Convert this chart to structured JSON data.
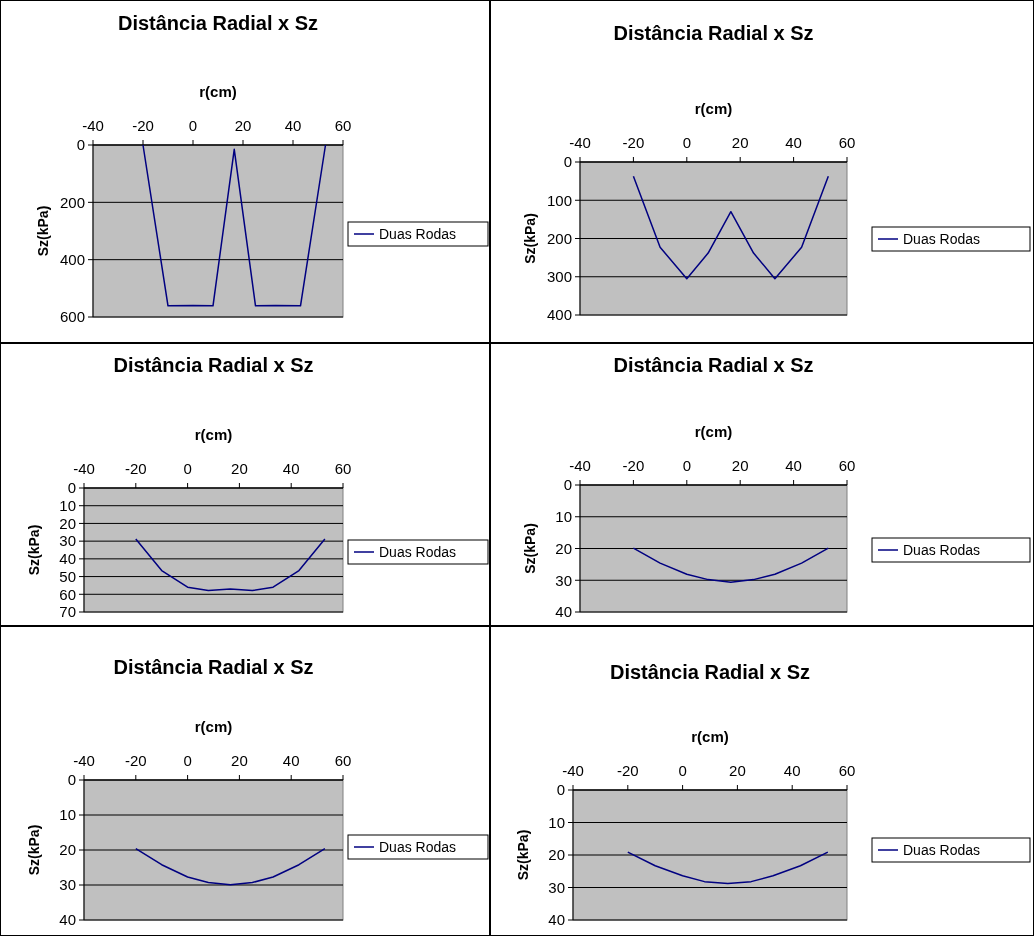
{
  "chart_data": [
    {
      "type": "line",
      "title": "Distância Radial x Sz",
      "xlabel": "r(cm)",
      "ylabel": "Sz(kPa)",
      "xlim": [
        -40,
        60
      ],
      "xticks": [
        -40,
        -20,
        0,
        20,
        40,
        60
      ],
      "ylim": [
        600,
        0
      ],
      "yticks": [
        0,
        200,
        400,
        600
      ],
      "grid": "y",
      "legend": "right",
      "x": [
        -20,
        -10,
        0,
        8,
        16.5,
        25,
        33,
        43,
        53
      ],
      "series": [
        {
          "name": "Duas Rodas",
          "color": "#000080",
          "values": [
            0,
            561,
            560,
            561,
            15,
            561,
            560,
            561,
            0
          ]
        }
      ]
    },
    {
      "type": "line",
      "title": "Distância Radial x Sz",
      "xlabel": "r(cm)",
      "ylabel": "Sz(kPa)",
      "xlim": [
        -40,
        60
      ],
      "xticks": [
        -40,
        -20,
        0,
        20,
        40,
        60
      ],
      "ylim": [
        400,
        0
      ],
      "yticks": [
        0,
        100,
        200,
        300,
        400
      ],
      "grid": "y",
      "legend": "right",
      "x": [
        -20,
        -10,
        0,
        8,
        16.5,
        25,
        33,
        43,
        53
      ],
      "series": [
        {
          "name": "Duas Rodas",
          "color": "#000080",
          "values": [
            37,
            223,
            305,
            238,
            130,
            238,
            305,
            223,
            37
          ]
        }
      ]
    },
    {
      "type": "line",
      "title": "Distância Radial x Sz",
      "xlabel": "r(cm)",
      "ylabel": "Sz(kPa)",
      "xlim": [
        -40,
        60
      ],
      "xticks": [
        -40,
        -20,
        0,
        20,
        40,
        60
      ],
      "ylim": [
        70,
        0
      ],
      "yticks": [
        0,
        10,
        20,
        30,
        40,
        50,
        60,
        70
      ],
      "grid": "y",
      "legend": "right",
      "x": [
        -20,
        -10,
        0,
        8,
        16.5,
        25,
        33,
        43,
        53
      ],
      "series": [
        {
          "name": "Duas Rodas",
          "color": "#000080",
          "values": [
            28.8,
            46.6,
            56,
            57.9,
            57,
            57.9,
            56,
            46.6,
            28.8
          ]
        }
      ]
    },
    {
      "type": "line",
      "title": "Distância Radial x Sz",
      "xlabel": "r(cm)",
      "ylabel": "Sz(kPa)",
      "xlim": [
        -40,
        60
      ],
      "xticks": [
        -40,
        -20,
        0,
        20,
        40,
        60
      ],
      "ylim": [
        40,
        0
      ],
      "yticks": [
        0,
        10,
        20,
        30,
        40
      ],
      "grid": "y",
      "legend": "right",
      "x": [
        -20,
        -10,
        0,
        8,
        16.5,
        25,
        33,
        43,
        53
      ],
      "series": [
        {
          "name": "Duas Rodas",
          "color": "#000080",
          "values": [
            19.9,
            24.6,
            28.1,
            29.8,
            30.6,
            29.8,
            28.1,
            24.6,
            19.9
          ]
        }
      ]
    },
    {
      "type": "line",
      "title": "Distância Radial x Sz",
      "xlabel": "r(cm)",
      "ylabel": "Sz(kPa)",
      "xlim": [
        -40,
        60
      ],
      "xticks": [
        -40,
        -20,
        0,
        20,
        40,
        60
      ],
      "ylim": [
        40,
        0
      ],
      "yticks": [
        0,
        10,
        20,
        30,
        40
      ],
      "grid": "y",
      "legend": "right",
      "x": [
        -20,
        -10,
        0,
        8,
        16.5,
        25,
        33,
        43,
        53
      ],
      "series": [
        {
          "name": "Duas Rodas",
          "color": "#000080",
          "values": [
            19.6,
            24.2,
            27.7,
            29.3,
            29.9,
            29.3,
            27.7,
            24.2,
            19.6
          ]
        }
      ]
    },
    {
      "type": "line",
      "title": "Distância Radial x Sz",
      "xlabel": "r(cm)",
      "ylabel": "Sz(kPa)",
      "xlim": [
        -40,
        60
      ],
      "xticks": [
        -40,
        -20,
        0,
        20,
        40,
        60
      ],
      "ylim": [
        40,
        0
      ],
      "yticks": [
        0,
        10,
        20,
        30,
        40
      ],
      "grid": "y",
      "legend": "right",
      "x": [
        -20,
        -10,
        0,
        8,
        16.5,
        25,
        33,
        43,
        53
      ],
      "series": [
        {
          "name": "Duas Rodas",
          "color": "#000080",
          "values": [
            19.1,
            23.3,
            26.4,
            28.2,
            28.8,
            28.2,
            26.4,
            23.3,
            19.1
          ]
        }
      ]
    }
  ]
}
